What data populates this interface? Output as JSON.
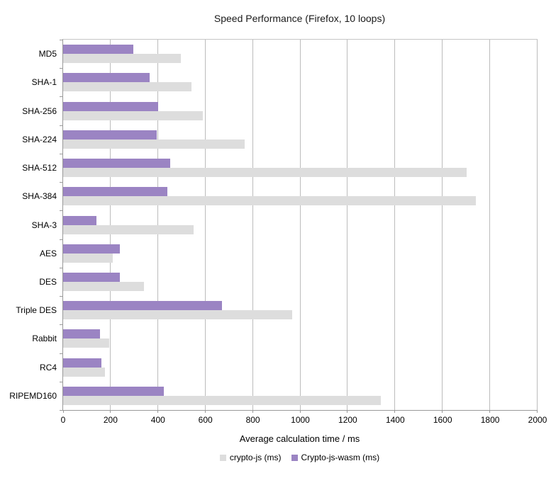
{
  "chart_data": {
    "type": "bar",
    "orientation": "horizontal",
    "title": "Speed Performance (Firefox, 10 loops)",
    "xlabel": "Average calculation time / ms",
    "ylabel": "",
    "xlim": [
      0,
      2000
    ],
    "x_ticks": [
      0,
      200,
      400,
      600,
      800,
      1000,
      1200,
      1400,
      1600,
      1800,
      2000
    ],
    "grid": true,
    "legend_position": "bottom",
    "categories": [
      "MD5",
      "SHA-1",
      "SHA-256",
      "SHA-224",
      "SHA-512",
      "SHA-384",
      "SHA-3",
      "AES",
      "DES",
      "Triple DES",
      "Rabbit",
      "RC4",
      "RIPEMD160"
    ],
    "series": [
      {
        "name": "crypto-js (ms)",
        "color": "#dddddd",
        "group_row": 1,
        "values": [
          495,
          540,
          590,
          765,
          1700,
          1740,
          550,
          210,
          340,
          965,
          195,
          175,
          1340
        ]
      },
      {
        "name": "Crypto-js-wasm (ms)",
        "color": "#9b84c3",
        "group_row": 0,
        "values": [
          295,
          365,
          400,
          395,
          450,
          440,
          140,
          240,
          240,
          670,
          155,
          160,
          425
        ]
      }
    ],
    "colors": {
      "gridline": "#bcbcbc",
      "axis": "#999999",
      "text": "#000000",
      "background": "#ffffff"
    }
  }
}
